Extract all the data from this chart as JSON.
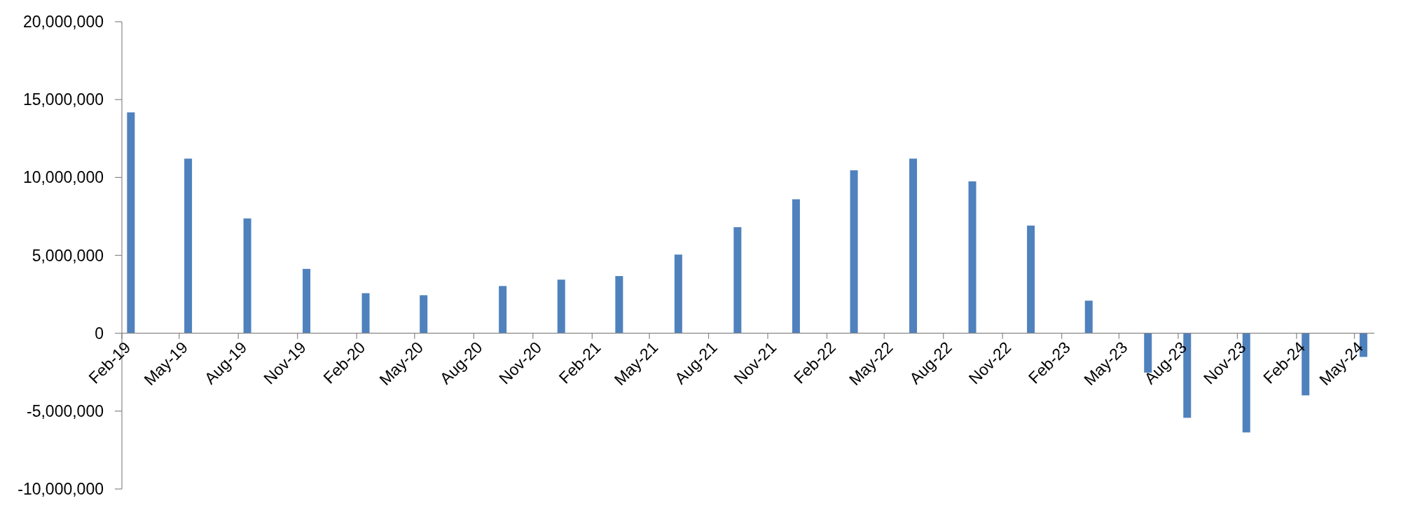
{
  "chart_data": {
    "type": "bar",
    "x": [
      "2019-02-15",
      "2019-05-15",
      "2019-08-15",
      "2019-11-15",
      "2020-02-15",
      "2020-05-15",
      "2020-09-15",
      "2020-12-15",
      "2021-03-15",
      "2021-06-15",
      "2021-09-15",
      "2021-12-15",
      "2022-03-15",
      "2022-06-15",
      "2022-09-15",
      "2022-12-15",
      "2023-03-15",
      "2023-06-15",
      "2023-08-15",
      "2023-11-15",
      "2024-02-15",
      "2024-05-15"
    ],
    "values": [
      14180000,
      11210000,
      7370000,
      4130000,
      2570000,
      2440000,
      3030000,
      3440000,
      3670000,
      5050000,
      6810000,
      8600000,
      10460000,
      11210000,
      9750000,
      6910000,
      2090000,
      -2530000,
      -5430000,
      -6370000,
      -3990000,
      -1520000
    ],
    "color": "#4f81bd",
    "xlim": [
      "2019-02-01",
      "2024-06-01"
    ],
    "xticks": [
      {
        "value": "2019-02",
        "label": "Feb-19"
      },
      {
        "value": "2019-05",
        "label": "May-19"
      },
      {
        "value": "2019-08",
        "label": "Aug-19"
      },
      {
        "value": "2019-11",
        "label": "Nov-19"
      },
      {
        "value": "2020-02",
        "label": "Feb-20"
      },
      {
        "value": "2020-05",
        "label": "May-20"
      },
      {
        "value": "2020-08",
        "label": "Aug-20"
      },
      {
        "value": "2020-11",
        "label": "Nov-20"
      },
      {
        "value": "2021-02",
        "label": "Feb-21"
      },
      {
        "value": "2021-05",
        "label": "May-21"
      },
      {
        "value": "2021-08",
        "label": "Aug-21"
      },
      {
        "value": "2021-11",
        "label": "Nov-21"
      },
      {
        "value": "2022-02",
        "label": "Feb-22"
      },
      {
        "value": "2022-05",
        "label": "May-22"
      },
      {
        "value": "2022-08",
        "label": "Aug-22"
      },
      {
        "value": "2022-11",
        "label": "Nov-22"
      },
      {
        "value": "2023-02",
        "label": "Feb-23"
      },
      {
        "value": "2023-05",
        "label": "May-23"
      },
      {
        "value": "2023-08",
        "label": "Aug-23"
      },
      {
        "value": "2023-11",
        "label": "Nov-23"
      },
      {
        "value": "2024-02",
        "label": "Feb-24"
      },
      {
        "value": "2024-05",
        "label": "May-24"
      }
    ],
    "ylim": [
      -10000000,
      20000000
    ],
    "yticks": [
      {
        "value": -10000000,
        "label": "-10,000,000"
      },
      {
        "value": -5000000,
        "label": "-5,000,000"
      },
      {
        "value": 0,
        "label": "0"
      },
      {
        "value": 5000000,
        "label": "5,000,000"
      },
      {
        "value": 10000000,
        "label": "10,000,000"
      },
      {
        "value": 15000000,
        "label": "15,000,000"
      },
      {
        "value": 20000000,
        "label": "20,000,000"
      }
    ],
    "grid": false
  }
}
